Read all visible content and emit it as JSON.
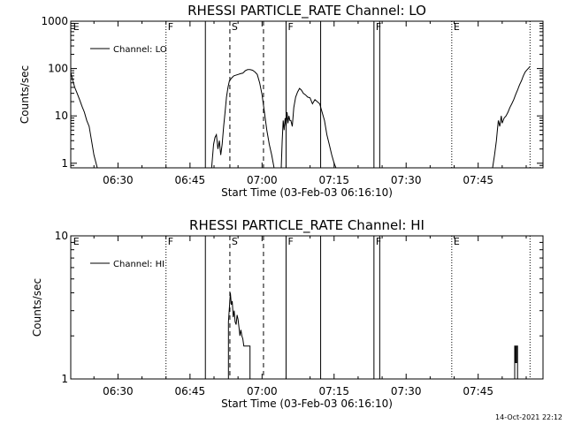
{
  "footer": {
    "timestamp": "14-Oct-2021 22:12"
  },
  "time_axis": {
    "tick_minutes": [
      26,
      41,
      56,
      71,
      86,
      101
    ],
    "start_minute": 16.1667,
    "end_minute": 114.5
  },
  "events": [
    {
      "label": "E",
      "minute": 16.3,
      "style": "none"
    },
    {
      "label": "F",
      "minute": 36.0,
      "style": "dotted"
    },
    {
      "label": "",
      "minute": 44.2,
      "style": "solid"
    },
    {
      "label": "S",
      "minute": 49.3,
      "style": "dashed"
    },
    {
      "label": "",
      "minute": 56.3,
      "style": "dashed"
    },
    {
      "label": "F",
      "minute": 61.0,
      "style": "solid"
    },
    {
      "label": "",
      "minute": 68.2,
      "style": "solid"
    },
    {
      "label": "F",
      "minute": 79.3,
      "style": "solid"
    },
    {
      "label": "",
      "minute": 80.5,
      "style": "solid"
    },
    {
      "label": "E",
      "minute": 95.5,
      "style": "dotted"
    },
    {
      "label": "",
      "minute": 111.8,
      "style": "dotted"
    }
  ],
  "chart_data": [
    {
      "type": "line",
      "title": "RHESSI PARTICLE_RATE Channel: LO",
      "xlabel": "Start Time (03-Feb-03 06:16:10)",
      "ylabel": "Counts/sec",
      "x_tick_labels": [
        "06:30",
        "06:45",
        "07:00",
        "07:15",
        "07:30",
        "07:45"
      ],
      "y_scale": "log",
      "ylim": [
        0.8,
        1000
      ],
      "y_ticks": [
        1,
        10,
        100,
        1000
      ],
      "y_tick_labels": [
        "1",
        "10",
        "100",
        "1000"
      ],
      "legend": {
        "label": "Channel: LO",
        "position": "top-left"
      },
      "series": [
        {
          "name": "Channel: LO",
          "segments": [
            {
              "x": [
                16.2,
                16.6,
                17.0,
                17.5,
                18.0,
                18.5,
                19.0,
                19.5,
                20.0,
                20.5,
                21.0,
                21.7
              ],
              "y": [
                80,
                55,
                40,
                30,
                22,
                16,
                12,
                8,
                6,
                3,
                1.5,
                0.8
              ]
            },
            {
              "x": [
                45.5,
                45.9,
                46.2,
                46.5,
                46.8,
                47.1,
                47.4,
                47.7,
                48.0,
                48.3,
                48.6,
                48.9,
                49.2,
                49.5,
                49.8,
                50.1,
                50.5,
                51.0,
                51.5,
                52.0,
                52.5,
                53.0,
                53.5,
                54.0,
                54.5,
                55.0,
                55.5,
                56.0,
                56.5,
                57.0,
                57.5,
                58.0,
                58.5
              ],
              "y": [
                0.8,
                2.5,
                3.5,
                4,
                2,
                3,
                1.5,
                2.5,
                6,
                12,
                25,
                40,
                55,
                60,
                65,
                70,
                72,
                75,
                78,
                80,
                90,
                95,
                95,
                92,
                85,
                75,
                50,
                28,
                12,
                5,
                2.5,
                1.5,
                0.8
              ]
            },
            {
              "x": [
                60.0,
                60.2,
                60.4,
                60.6,
                60.8,
                61.0,
                61.2,
                61.4,
                61.6,
                61.8,
                62.0,
                62.3,
                62.6,
                63.0,
                63.4,
                63.8,
                64.2,
                64.6,
                65.0,
                65.5,
                66.0,
                66.5,
                67.0,
                67.5,
                68.0,
                68.5,
                69.0,
                69.5,
                70.0,
                70.5,
                71.0,
                71.4
              ],
              "y": [
                0.8,
                3,
                8,
                5,
                9,
                6,
                12,
                7,
                10,
                8,
                8,
                6,
                15,
                25,
                32,
                38,
                35,
                30,
                28,
                25,
                24,
                18,
                22,
                20,
                18,
                12,
                8,
                4,
                2.5,
                1.5,
                1,
                0.8
              ]
            },
            {
              "x": [
                104.0,
                104.4,
                104.8,
                105.0,
                105.2,
                105.5,
                105.8,
                106.0,
                106.4,
                106.8,
                107.2,
                107.6,
                108.0,
                108.4,
                108.8,
                109.2,
                109.6,
                110.0,
                110.4,
                110.8,
                111.2,
                111.8
              ],
              "y": [
                0.8,
                1.5,
                3,
                5,
                8,
                6,
                10,
                7,
                9,
                10,
                12,
                15,
                18,
                22,
                28,
                35,
                45,
                55,
                70,
                85,
                95,
                110
              ]
            }
          ]
        }
      ]
    },
    {
      "type": "line",
      "title": "RHESSI PARTICLE_RATE Channel: HI",
      "xlabel": "Start Time (03-Feb-03 06:16:10)",
      "ylabel": "Counts/sec",
      "x_tick_labels": [
        "06:30",
        "06:45",
        "07:00",
        "07:15",
        "07:30",
        "07:45"
      ],
      "y_scale": "log",
      "ylim": [
        1,
        10
      ],
      "y_ticks": [
        1,
        10
      ],
      "y_tick_labels": [
        "1",
        "10"
      ],
      "legend": {
        "label": "Channel: HI",
        "position": "top-left"
      },
      "series": [
        {
          "name": "Channel: HI",
          "segments": [
            {
              "x": [
                49.0,
                49.0,
                49.4,
                49.6,
                49.8,
                50.0,
                50.2,
                50.4,
                50.6,
                50.8,
                51.0,
                51.2,
                51.4,
                51.6,
                51.8,
                52.0,
                52.2,
                52.5,
                52.8,
                53.1,
                53.5,
                53.5
              ],
              "y": [
                1,
                2.5,
                4.0,
                3.3,
                3.5,
                2.7,
                3.0,
                2.5,
                2.4,
                2.8,
                2.6,
                2.3,
                2.0,
                2.2,
                2.0,
                1.9,
                1.7,
                1.7,
                1.7,
                1.7,
                1.7,
                1.0
              ]
            },
            {
              "x": [
                108.6,
                108.6,
                108.8,
                108.8,
                109.0,
                109.0,
                109.2,
                109.2
              ],
              "y": [
                1,
                1.7,
                1.7,
                1.3,
                1.3,
                1.7,
                1.7,
                1
              ]
            }
          ]
        }
      ]
    }
  ]
}
